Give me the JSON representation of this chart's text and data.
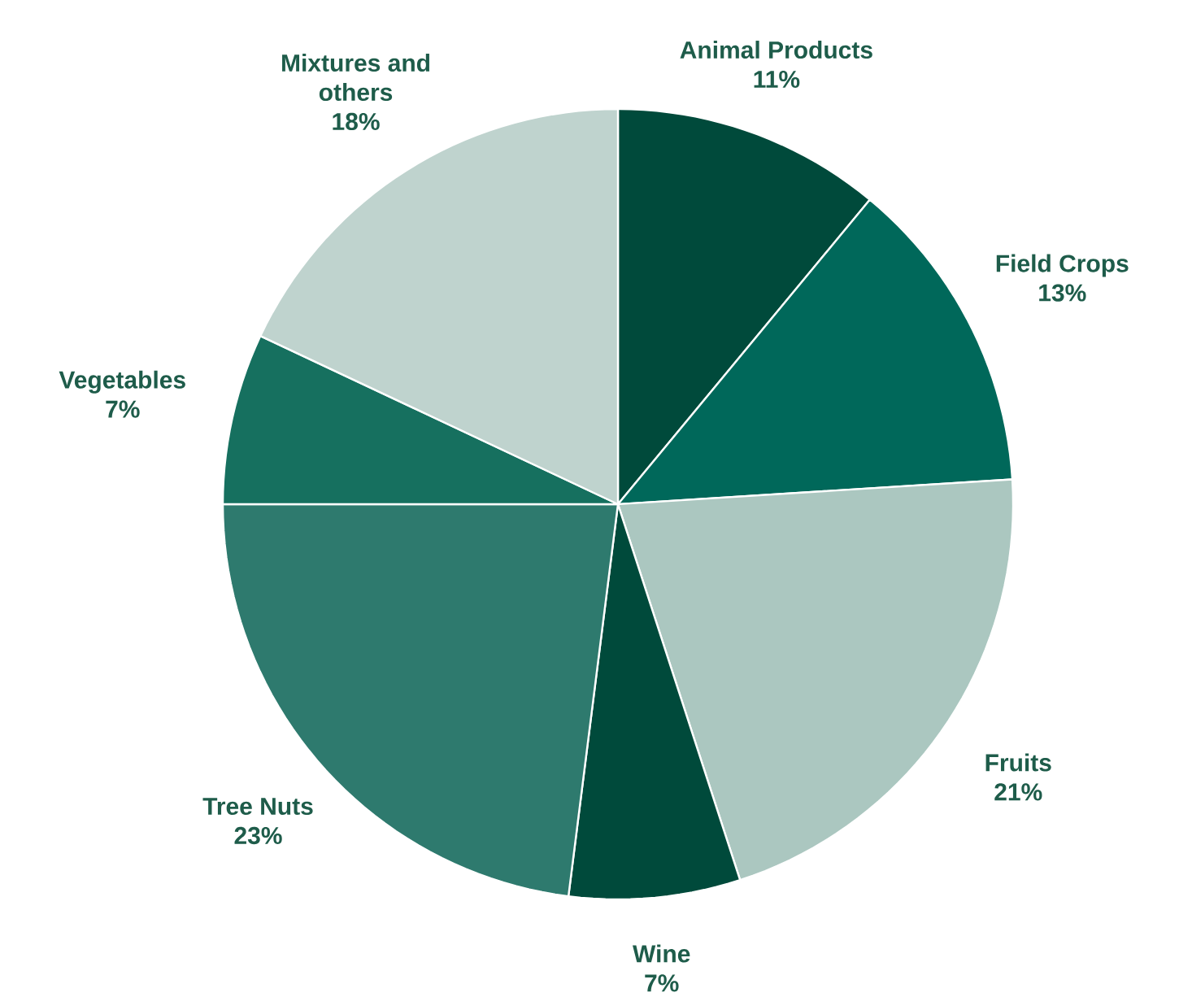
{
  "chart_data": {
    "type": "pie",
    "categories": [
      "Animal Products",
      "Field Crops",
      "Fruits",
      "Wine",
      "Tree Nuts",
      "Vegetables",
      "Mixtures and others"
    ],
    "values": [
      11,
      13,
      21,
      7,
      23,
      7,
      18
    ],
    "value_labels": [
      "11%",
      "13%",
      "21%",
      "7%",
      "23%",
      "7%",
      "18%"
    ],
    "colors": [
      "#004a3b",
      "#00685a",
      "#abc7c0",
      "#004a3b",
      "#2e7a6e",
      "#16705f",
      "#bfd3ce"
    ]
  }
}
